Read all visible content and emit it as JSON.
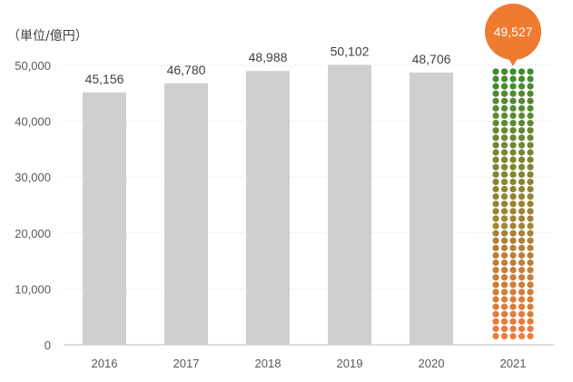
{
  "chart_data": {
    "type": "bar",
    "unit_label": "（単位/億円）",
    "categories": [
      "2016",
      "2017",
      "2018",
      "2019",
      "2020",
      "2021"
    ],
    "values": [
      45156,
      46780,
      48988,
      50102,
      48706,
      49527
    ],
    "data_labels": [
      "45,156",
      "46,780",
      "48,988",
      "50,102",
      "48,706",
      "49,527"
    ],
    "ylim": [
      0,
      50000
    ],
    "yticks": [
      0,
      10000,
      20000,
      30000,
      40000,
      50000
    ],
    "ytick_labels": [
      "0",
      "10,000",
      "20,000",
      "30,000",
      "40,000",
      "50,000"
    ],
    "grid": true,
    "bar_color": "#d0cece",
    "highlight": {
      "category": "2021",
      "style": "dot-matrix",
      "dot_color_top": "#3f8c2f",
      "dot_color_bottom": "#f07a3a",
      "callout_color": "#ee7b30"
    }
  }
}
